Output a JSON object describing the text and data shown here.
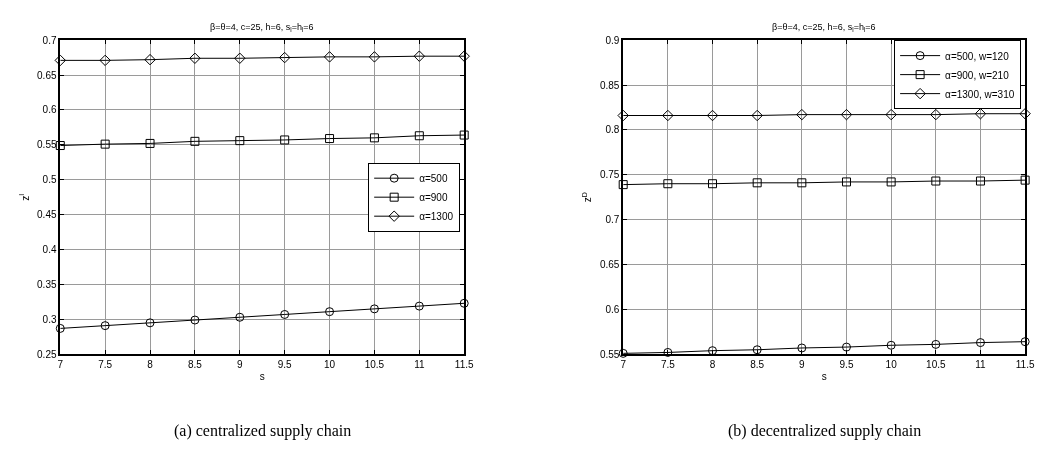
{
  "chart_data": [
    {
      "type": "line",
      "title": "β=θ=4, c=25, h=6, s$_{l}$=h$_{l}$=6",
      "xlabel": "s",
      "ylabel": "z$^{I}$",
      "x": [
        7,
        7.5,
        8,
        8.5,
        9,
        9.5,
        10,
        10.5,
        11,
        11.5
      ],
      "series": [
        {
          "name": "α=500",
          "color": "#000000",
          "marker": "circle",
          "values": [
            0.287,
            0.291,
            0.295,
            0.299,
            0.303,
            0.307,
            0.311,
            0.315,
            0.319,
            0.323
          ]
        },
        {
          "name": "α=900",
          "color": "#000000",
          "marker": "square",
          "values": [
            0.549,
            0.551,
            0.552,
            0.555,
            0.556,
            0.557,
            0.559,
            0.56,
            0.563,
            0.564
          ]
        },
        {
          "name": "α=1300",
          "color": "#000000",
          "marker": "diamond",
          "values": [
            0.671,
            0.671,
            0.672,
            0.674,
            0.674,
            0.675,
            0.676,
            0.676,
            0.677,
            0.677
          ]
        }
      ],
      "xlim": [
        7,
        11.5
      ],
      "xticks": [
        7,
        7.5,
        8,
        8.5,
        9,
        9.5,
        10,
        10.5,
        11,
        11.5
      ],
      "ylim": [
        0.25,
        0.7
      ],
      "yticks": [
        0.25,
        0.3,
        0.35,
        0.4,
        0.45,
        0.5,
        0.55,
        0.6,
        0.65,
        0.7
      ],
      "grid": true,
      "legend": "right",
      "line_style": "solid",
      "annotations": [
        "(a) centralized supply chain"
      ]
    },
    {
      "type": "line",
      "title": "β=θ=4, c=25, h=6, s$_{l}$=h$_{l}$=6",
      "xlabel": "s",
      "ylabel": "z$^{D}$",
      "x": [
        7,
        7.5,
        8,
        8.5,
        9,
        9.5,
        10,
        10.5,
        11,
        11.5
      ],
      "series": [
        {
          "name": "α=500, w=120",
          "color": "#000000",
          "marker": "circle",
          "values": [
            0.551,
            0.552,
            0.554,
            0.555,
            0.557,
            0.558,
            0.56,
            0.561,
            0.563,
            0.564
          ]
        },
        {
          "name": "α=900, w=210",
          "color": "#000000",
          "marker": "square",
          "values": [
            0.739,
            0.74,
            0.74,
            0.741,
            0.741,
            0.742,
            0.742,
            0.743,
            0.743,
            0.744
          ]
        },
        {
          "name": "α=1300, w=310",
          "color": "#000000",
          "marker": "diamond",
          "values": [
            0.816,
            0.816,
            0.816,
            0.816,
            0.817,
            0.817,
            0.817,
            0.817,
            0.818,
            0.818
          ]
        }
      ],
      "xlim": [
        7,
        11.5
      ],
      "xticks": [
        7,
        7.5,
        8,
        8.5,
        9,
        9.5,
        10,
        10.5,
        11,
        11.5
      ],
      "ylim": [
        0.55,
        0.9
      ],
      "yticks": [
        0.55,
        0.6,
        0.65,
        0.7,
        0.75,
        0.8,
        0.85,
        0.9
      ],
      "grid": true,
      "legend": "top right",
      "line_style": "solid",
      "annotations": [
        "(b) decentralized supply chain"
      ]
    }
  ]
}
